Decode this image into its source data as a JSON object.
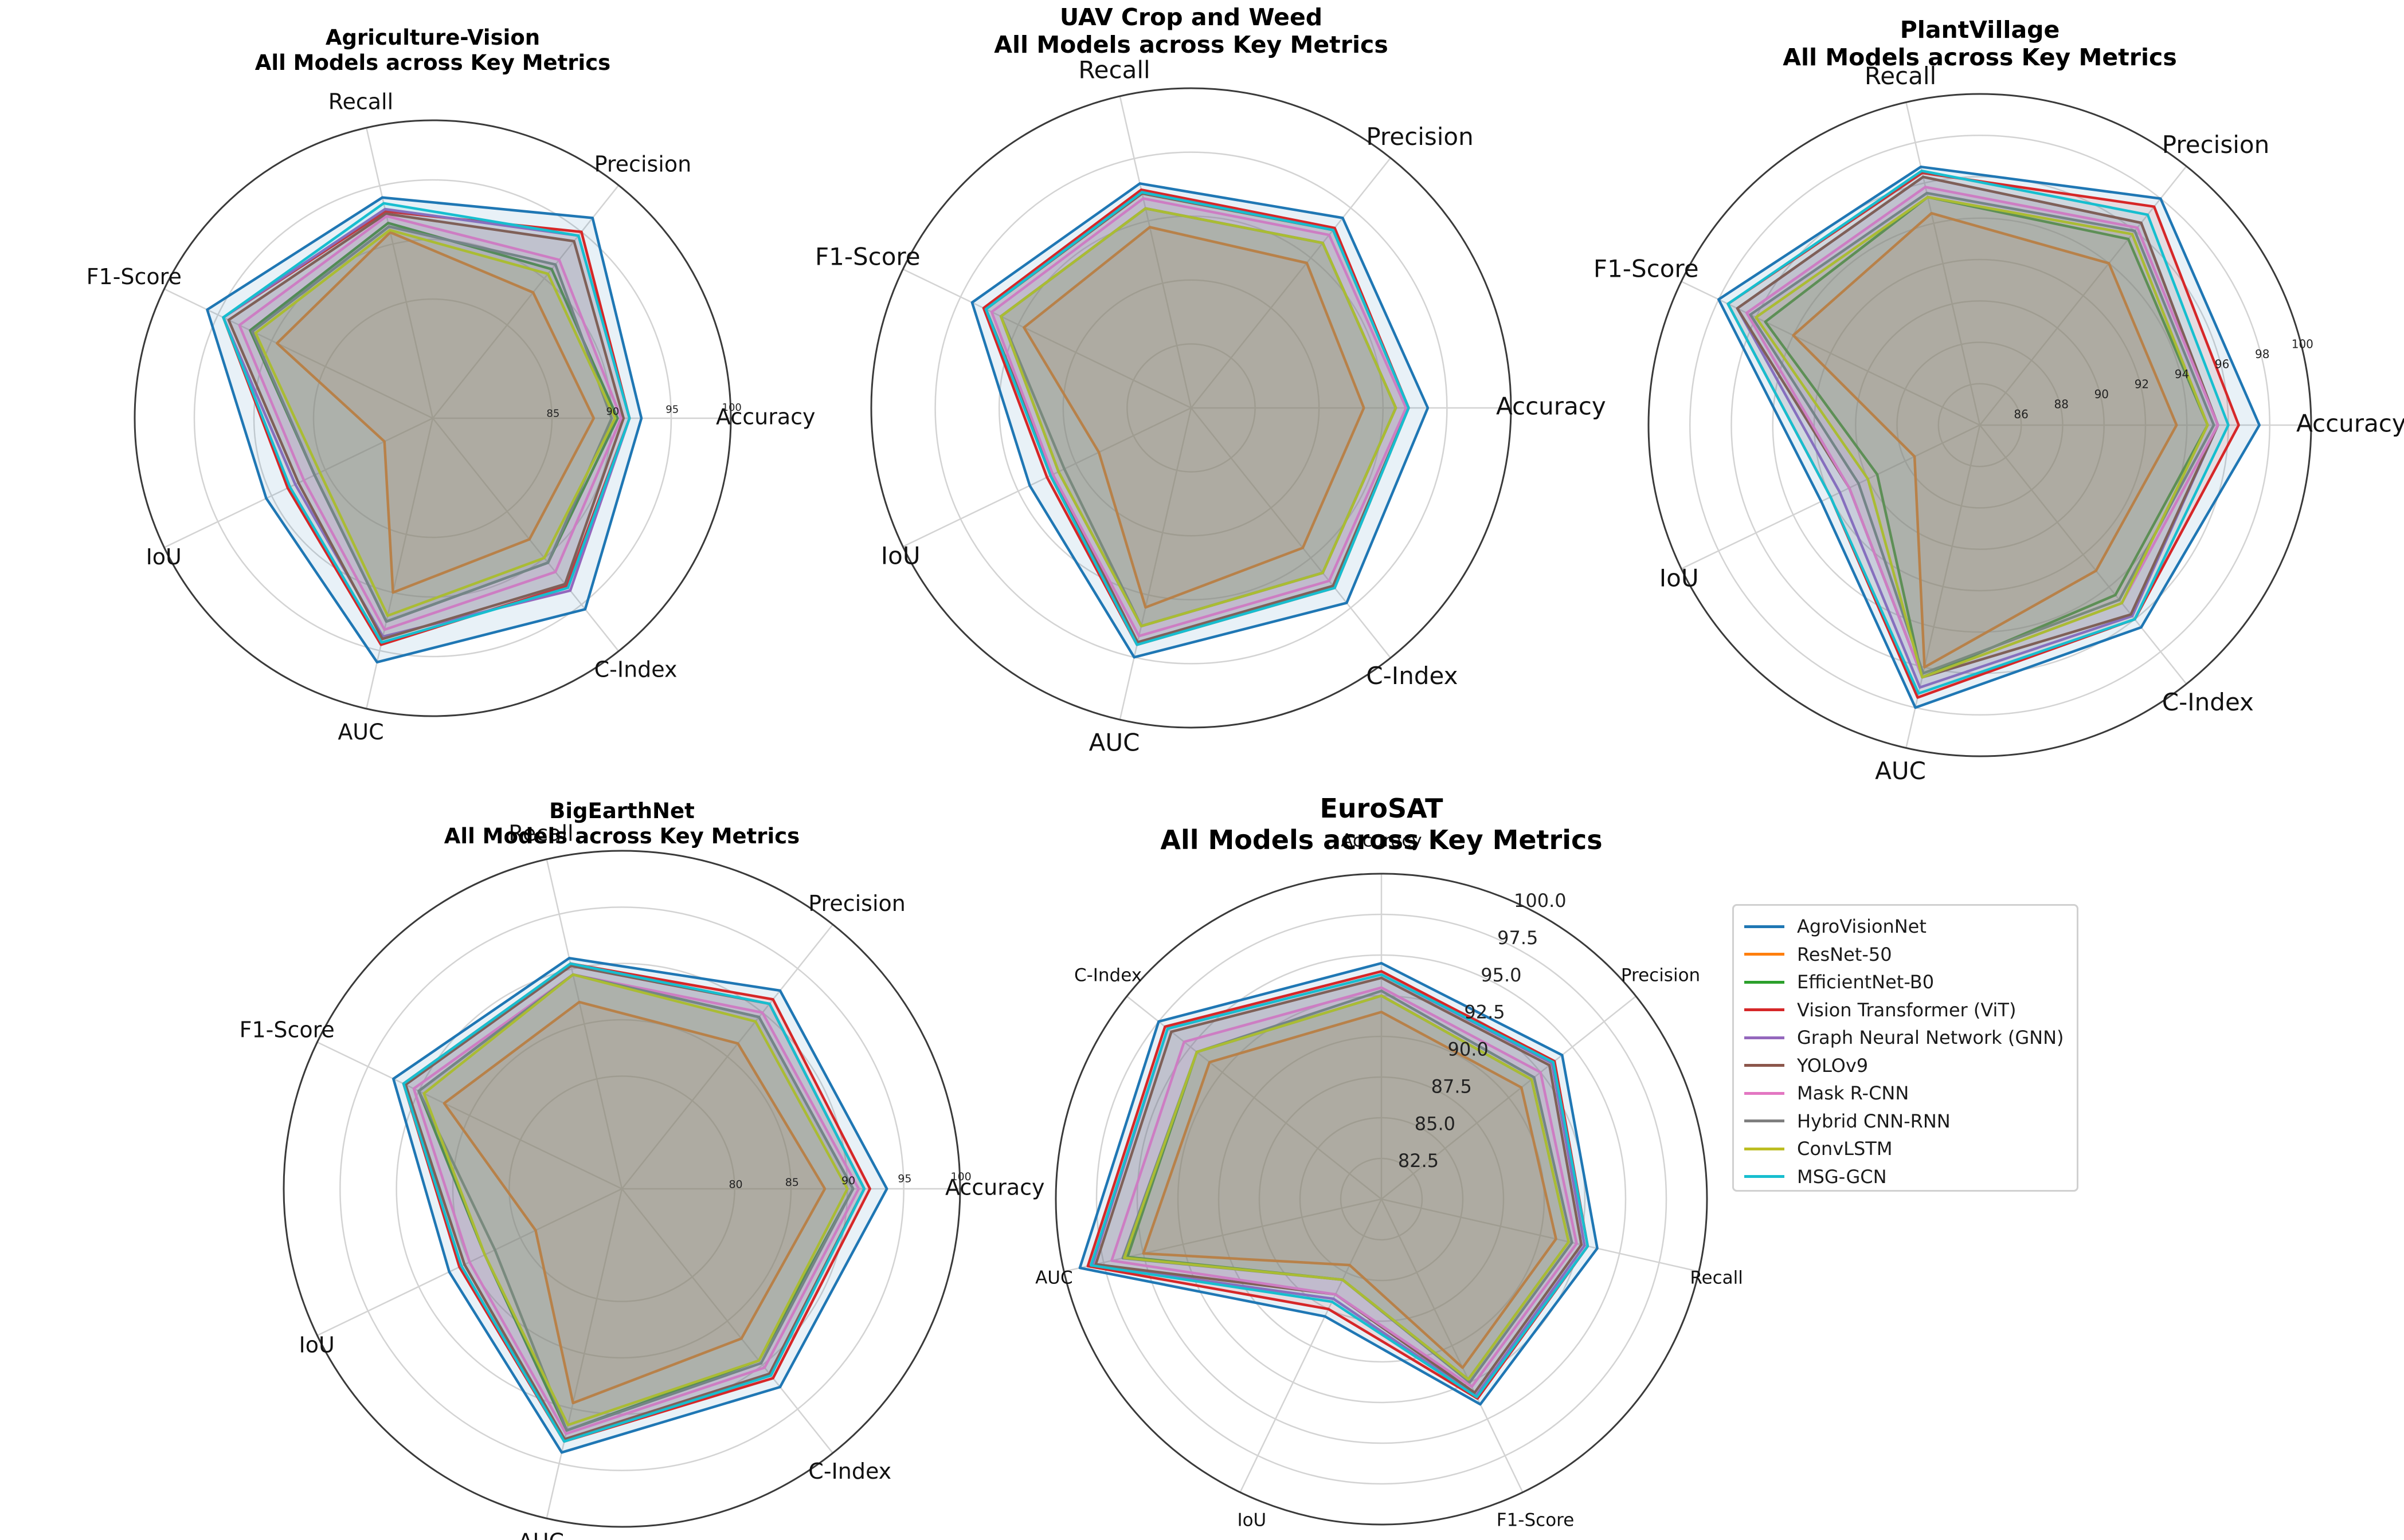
{
  "chart_data": [
    {
      "type": "radar",
      "title": "Agriculture-Vision",
      "subtitle": "All Models across Key Metrics",
      "axes": [
        "Accuracy",
        "Precision",
        "Recall",
        "F1-Score",
        "IoU",
        "AUC",
        "C-Index"
      ],
      "rlim": [
        75,
        100
      ],
      "tick_values": [
        85,
        90,
        95,
        100
      ],
      "tick_labels": [
        "85",
        "90",
        "95",
        "100"
      ],
      "series": [
        {
          "name": "AgroVisionNet",
          "values": [
            92.5,
            96.5,
            94.0,
            96.0,
            90.5,
            96.0,
            95.5
          ]
        },
        {
          "name": "ResNet-50",
          "values": [
            88.5,
            88.5,
            91.0,
            89.5,
            79.5,
            90.0,
            88.0
          ]
        },
        {
          "name": "EfficientNet-B0",
          "values": [
            90.5,
            91.0,
            91.8,
            92.0,
            86.0,
            92.5,
            90.5
          ]
        },
        {
          "name": "Vision Transformer (ViT)",
          "values": [
            91.5,
            95.0,
            92.8,
            94.5,
            88.5,
            94.5,
            93.0
          ]
        },
        {
          "name": "Graph Neural Network (GNN)",
          "values": [
            91.5,
            94.6,
            93.0,
            94.5,
            87.8,
            93.8,
            93.5
          ]
        },
        {
          "name": "YOLOv9",
          "values": [
            91.0,
            94.0,
            92.6,
            94.0,
            87.5,
            94.0,
            92.8
          ]
        },
        {
          "name": "Mask R-CNN",
          "values": [
            90.8,
            92.0,
            92.4,
            93.0,
            87.0,
            93.2,
            91.5
          ]
        },
        {
          "name": "Hybrid CNN-RNN",
          "values": [
            90.0,
            91.5,
            91.5,
            91.8,
            86.0,
            92.5,
            90.5
          ]
        },
        {
          "name": "ConvLSTM",
          "values": [
            90.3,
            90.5,
            91.2,
            91.5,
            85.5,
            92.0,
            90.0
          ]
        },
        {
          "name": "MSG-GCN",
          "values": [
            91.5,
            94.6,
            93.5,
            94.5,
            88.3,
            94.3,
            93.2
          ]
        }
      ]
    },
    {
      "type": "radar",
      "title": "UAV Crop and Weed",
      "subtitle": "All Models across Key Metrics",
      "axes": [
        "Accuracy",
        "Precision",
        "Recall",
        "F1-Score",
        "IoU",
        "AUC",
        "C-Index"
      ],
      "rlim": [
        75,
        100
      ],
      "tick_values": [],
      "tick_labels": [],
      "series": [
        {
          "name": "AgroVisionNet",
          "values": [
            93.5,
            94.0,
            93.0,
            94.0,
            89.0,
            95.0,
            94.5
          ]
        },
        {
          "name": "ResNet-50",
          "values": [
            88.5,
            89.5,
            89.5,
            89.5,
            83.0,
            91.0,
            89.0
          ]
        },
        {
          "name": "EfficientNet-B0",
          "values": [
            91.0,
            91.5,
            91.0,
            91.5,
            86.5,
            92.5,
            91.5
          ]
        },
        {
          "name": "Vision Transformer (ViT)",
          "values": [
            92.0,
            93.0,
            92.5,
            93.0,
            87.5,
            94.0,
            93.0
          ]
        },
        {
          "name": "Graph Neural Network (GNN)",
          "values": [
            92.0,
            92.8,
            92.3,
            92.8,
            87.0,
            93.8,
            92.8
          ]
        },
        {
          "name": "YOLOv9",
          "values": [
            92.0,
            92.8,
            92.2,
            92.8,
            87.0,
            93.8,
            92.8
          ]
        },
        {
          "name": "Mask R-CNN",
          "values": [
            91.8,
            92.3,
            91.8,
            92.3,
            87.0,
            93.3,
            92.3
          ]
        },
        {
          "name": "Hybrid CNN-RNN",
          "values": [
            91.0,
            91.5,
            91.0,
            91.5,
            86.0,
            92.5,
            91.5
          ]
        },
        {
          "name": "ConvLSTM",
          "values": [
            91.0,
            91.5,
            91.0,
            91.5,
            86.5,
            92.5,
            91.5
          ]
        },
        {
          "name": "MSG-GCN",
          "values": [
            92.0,
            92.8,
            92.3,
            92.8,
            87.2,
            94.0,
            93.0
          ]
        }
      ]
    },
    {
      "type": "radar",
      "title": "PlantVillage",
      "subtitle": "All Models across Key Metrics",
      "axes": [
        "Accuracy",
        "Precision",
        "Recall",
        "F1-Score",
        "IoU",
        "AUC",
        "C-Index"
      ],
      "rlim": [
        84,
        100
      ],
      "tick_values": [
        86,
        88,
        90,
        92,
        94,
        96,
        98,
        100
      ],
      "tick_labels": [
        "86",
        "88",
        "90",
        "92",
        "94",
        "96",
        "98",
        "100"
      ],
      "series": [
        {
          "name": "AgroVisionNet",
          "values": [
            97.5,
            98.0,
            96.8,
            98.0,
            92.5,
            98.0,
            96.5
          ]
        },
        {
          "name": "ResNet-50",
          "values": [
            93.5,
            94.0,
            94.5,
            94.0,
            87.5,
            96.0,
            93.0
          ]
        },
        {
          "name": "EfficientNet-B0",
          "values": [
            95.0,
            95.5,
            95.3,
            95.5,
            89.5,
            96.5,
            94.5
          ]
        },
        {
          "name": "Vision Transformer (ViT)",
          "values": [
            96.5,
            97.5,
            96.5,
            97.5,
            92.0,
            97.5,
            96.0
          ]
        },
        {
          "name": "Graph Neural Network (GNN)",
          "values": [
            95.5,
            96.5,
            96.3,
            97.0,
            91.5,
            97.0,
            95.8
          ]
        },
        {
          "name": "YOLOv9",
          "values": [
            95.5,
            96.5,
            96.3,
            97.0,
            91.0,
            96.5,
            95.7
          ]
        },
        {
          "name": "Mask R-CNN",
          "values": [
            95.5,
            96.2,
            95.8,
            96.5,
            91.0,
            96.5,
            95.0
          ]
        },
        {
          "name": "Hybrid CNN-RNN",
          "values": [
            95.3,
            96.0,
            95.5,
            96.3,
            90.5,
            96.3,
            94.8
          ]
        },
        {
          "name": "ConvLSTM",
          "values": [
            95.0,
            95.8,
            95.3,
            96.0,
            90.0,
            96.5,
            95.0
          ]
        },
        {
          "name": "MSG-GCN",
          "values": [
            96.0,
            97.0,
            96.6,
            97.5,
            92.0,
            97.3,
            96.0
          ]
        }
      ]
    },
    {
      "type": "radar",
      "title": "BigEarthNet",
      "subtitle": "All Models across Key Metrics",
      "axes": [
        "Accuracy",
        "Precision",
        "Recall",
        "F1-Score",
        "IoU",
        "AUC",
        "C-Index"
      ],
      "rlim": [
        70,
        100
      ],
      "tick_values": [
        80,
        85,
        90,
        95,
        100
      ],
      "tick_labels": [
        "80",
        "85",
        "90",
        "95",
        "100"
      ],
      "series": [
        {
          "name": "AgroVisionNet",
          "values": [
            93.5,
            92.5,
            91.0,
            92.5,
            87.0,
            94.0,
            92.5
          ]
        },
        {
          "name": "ResNet-50",
          "values": [
            88.0,
            86.5,
            87.0,
            87.5,
            78.5,
            89.5,
            87.0
          ]
        },
        {
          "name": "EfficientNet-B0",
          "values": [
            90.5,
            89.5,
            89.5,
            90.0,
            83.5,
            92.0,
            89.5
          ]
        },
        {
          "name": "Vision Transformer (ViT)",
          "values": [
            92.0,
            91.5,
            90.5,
            91.5,
            86.0,
            93.0,
            91.5
          ]
        },
        {
          "name": "Graph Neural Network (GNN)",
          "values": [
            91.5,
            91.0,
            90.3,
            91.3,
            85.5,
            92.8,
            91.0
          ]
        },
        {
          "name": "YOLOv9",
          "values": [
            91.5,
            91.0,
            90.3,
            91.3,
            85.5,
            92.8,
            91.0
          ]
        },
        {
          "name": "Mask R-CNN",
          "values": [
            91.0,
            90.0,
            89.5,
            90.5,
            85.0,
            92.3,
            90.3
          ]
        },
        {
          "name": "Hybrid CNN-RNN",
          "values": [
            90.5,
            89.5,
            89.5,
            90.0,
            82.5,
            92.0,
            89.8
          ]
        },
        {
          "name": "ConvLSTM",
          "values": [
            90.0,
            89.0,
            89.5,
            89.5,
            83.5,
            91.5,
            89.5
          ]
        },
        {
          "name": "MSG-GCN",
          "values": [
            91.5,
            91.0,
            90.5,
            91.5,
            85.8,
            93.0,
            91.2
          ]
        }
      ]
    },
    {
      "type": "radar",
      "title": "EuroSAT",
      "subtitle": "All Models across Key Metrics",
      "axes": [
        "Accuracy",
        "Precision",
        "Recall",
        "F1-Score",
        "IoU",
        "AUC",
        "C-Index"
      ],
      "rlim": [
        80,
        100
      ],
      "tick_values": [
        82.5,
        85.0,
        87.5,
        90.0,
        92.5,
        95.0,
        97.5,
        100.0
      ],
      "tick_labels": [
        "82.5",
        "85.0",
        "87.5",
        "90.0",
        "92.5",
        "95.0",
        "97.5",
        "100.0"
      ],
      "series": [
        {
          "name": "AgroVisionNet",
          "values": [
            94.5,
            94.2,
            93.6,
            94.0,
            88.0,
            99.0,
            97.5
          ]
        },
        {
          "name": "ResNet-50",
          "values": [
            91.5,
            91.0,
            91.0,
            91.5,
            84.5,
            95.0,
            93.5
          ]
        },
        {
          "name": "EfficientNet-B0",
          "values": [
            92.5,
            91.8,
            91.8,
            92.3,
            85.5,
            96.0,
            94.5
          ]
        },
        {
          "name": "Vision Transformer (ViT)",
          "values": [
            94.0,
            93.6,
            93.0,
            93.6,
            87.5,
            98.5,
            97.0
          ]
        },
        {
          "name": "Graph Neural Network (GNN)",
          "values": [
            93.8,
            93.4,
            92.8,
            93.4,
            86.8,
            98.2,
            96.8
          ]
        },
        {
          "name": "YOLOv9",
          "values": [
            93.6,
            93.2,
            92.6,
            93.2,
            86.5,
            98.0,
            96.5
          ]
        },
        {
          "name": "Mask R-CNN",
          "values": [
            93.0,
            92.5,
            92.3,
            92.8,
            86.5,
            97.0,
            95.5
          ]
        },
        {
          "name": "Hybrid CNN-RNN",
          "values": [
            92.8,
            92.0,
            92.0,
            92.5,
            85.5,
            96.3,
            94.5
          ]
        },
        {
          "name": "ConvLSTM",
          "values": [
            92.5,
            91.8,
            91.8,
            92.3,
            85.5,
            96.2,
            94.5
          ]
        },
        {
          "name": "MSG-GCN",
          "values": [
            93.8,
            93.5,
            93.0,
            93.5,
            87.0,
            98.3,
            96.8
          ]
        }
      ]
    }
  ],
  "legend": {
    "items": [
      {
        "name": "AgroVisionNet",
        "color": "#1f77b4"
      },
      {
        "name": "ResNet-50",
        "color": "#ff7f0e"
      },
      {
        "name": "EfficientNet-B0",
        "color": "#2ca02c"
      },
      {
        "name": "Vision Transformer (ViT)",
        "color": "#d62728"
      },
      {
        "name": "Graph Neural Network (GNN)",
        "color": "#9467bd"
      },
      {
        "name": "YOLOv9",
        "color": "#8c564b"
      },
      {
        "name": "Mask R-CNN",
        "color": "#e377c2"
      },
      {
        "name": "Hybrid CNN-RNN",
        "color": "#7f7f7f"
      },
      {
        "name": "ConvLSTM",
        "color": "#bcbd22"
      },
      {
        "name": "MSG-GCN",
        "color": "#17becf"
      }
    ]
  }
}
